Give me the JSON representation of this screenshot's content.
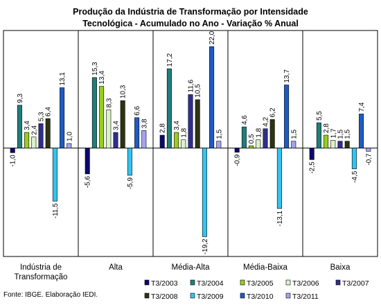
{
  "chart_data": {
    "type": "bar",
    "title": "Produção da Indústria de Transformação por Intensidade",
    "subtitle": "Tecnológica -  Acumulado no Ano - Variação % Anual",
    "categories": [
      [
        "Indústria de",
        "Transformação"
      ],
      [
        "Alta"
      ],
      [
        "Média-Alta"
      ],
      [
        "Média-Baixa"
      ],
      [
        "Baixa"
      ]
    ],
    "series": [
      {
        "name": "T3/2003",
        "color": "#0a0a6e",
        "values": [
          -1.0,
          -5.6,
          2.8,
          -0.9,
          -2.5
        ],
        "labels": [
          "-1,0",
          "-5,6",
          "2,8",
          "-0,9",
          "-2,5"
        ]
      },
      {
        "name": "T3/2004",
        "color": "#1f7f7a",
        "values": [
          9.3,
          15.3,
          17.2,
          4.6,
          5.5
        ],
        "labels": [
          "9,3",
          "15,3",
          "17,2",
          "4,6",
          "5,5"
        ]
      },
      {
        "name": "T3/2005",
        "color": "#9acd1e",
        "values": [
          3.4,
          13.4,
          3.4,
          0.5,
          2.8
        ],
        "labels": [
          "3,4",
          "13,4",
          "3,4",
          "0,5",
          "2,8"
        ]
      },
      {
        "name": "T3/2006",
        "color": "#d9f2c9",
        "values": [
          2.4,
          8.3,
          1.8,
          1.8,
          1.7
        ],
        "labels": [
          "2,4",
          "8,3",
          "1,8",
          "1,8",
          "1,7"
        ]
      },
      {
        "name": "T3/2007",
        "color": "#2e2f8c",
        "values": [
          5.3,
          3.4,
          11.6,
          4.2,
          1.5
        ],
        "labels": [
          "5,3",
          "3,4",
          "11,6",
          "4,2",
          "1,5"
        ]
      },
      {
        "name": "T3/2008",
        "color": "#2e3312",
        "values": [
          6.4,
          10.3,
          10.5,
          6.2,
          1.5
        ],
        "labels": [
          "6,4",
          "10,3",
          "10,5",
          "6,2",
          "1,5"
        ]
      },
      {
        "name": "T3/2009",
        "color": "#33c4f0",
        "values": [
          -11.5,
          -5.9,
          -19.2,
          -13.1,
          -4.5
        ],
        "labels": [
          "-11,5",
          "-5,9",
          "-19,2",
          "-13,1",
          "-4,5"
        ]
      },
      {
        "name": "T3/2010",
        "color": "#1f5bc4",
        "values": [
          13.1,
          6.6,
          22.0,
          13.7,
          7.4
        ],
        "labels": [
          "13,1",
          "6,6",
          "22,0",
          "13,7",
          "7,4"
        ]
      },
      {
        "name": "T3/2011",
        "color": "#a3a3ef",
        "values": [
          1.0,
          3.8,
          1.5,
          1.5,
          -0.7
        ],
        "labels": [
          "1,0",
          "3,8",
          "1,5",
          "1,5",
          "-0,7"
        ]
      }
    ],
    "ylim": [
      -23.5,
      25.5
    ],
    "grid": false,
    "legend": "bottom-right",
    "source": "Fonte: IBGE. Elaboração IEDI."
  }
}
